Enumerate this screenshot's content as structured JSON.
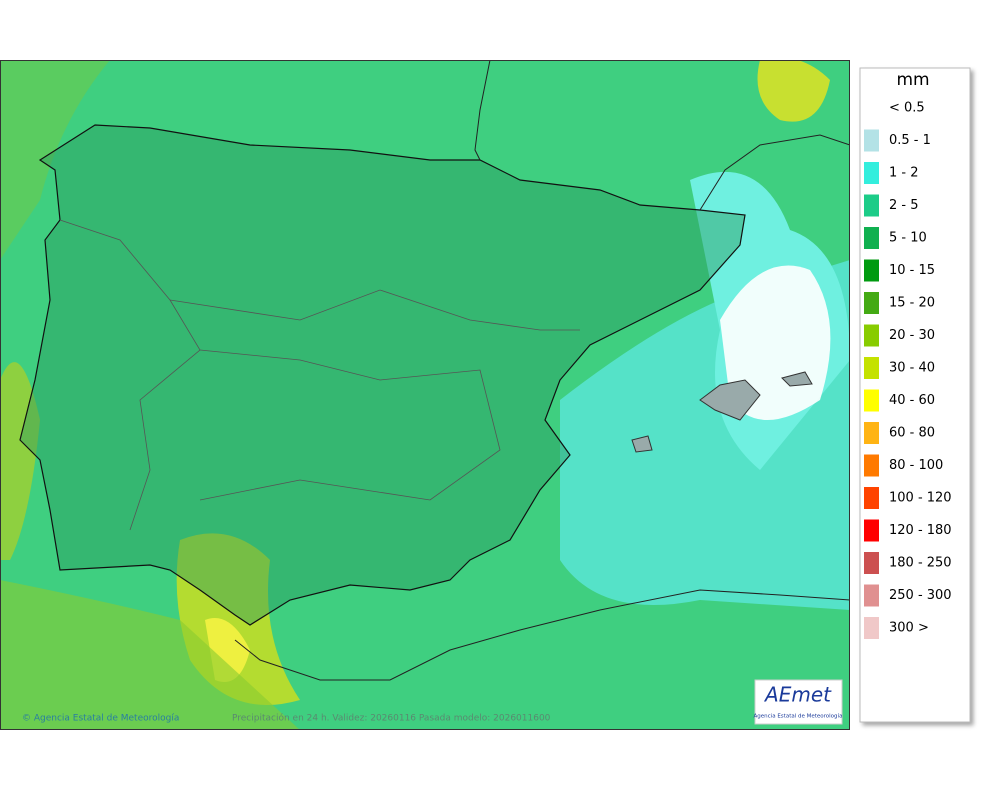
{
  "legend": {
    "title": "mm",
    "items": [
      {
        "label": "< 0.5"
      },
      {
        "label": "0.5 - 1",
        "color": "#b3e2e6"
      },
      {
        "label": "1 - 2",
        "color": "#33eedd"
      },
      {
        "label": "2 - 5",
        "color": "#1ccc88"
      },
      {
        "label": "5 - 10",
        "color": "#10b050"
      },
      {
        "label": "10 - 15",
        "color": "#009a10"
      },
      {
        "label": "15 - 20",
        "color": "#44aa14"
      },
      {
        "label": "20 - 30",
        "color": "#88cc00"
      },
      {
        "label": "30 - 40",
        "color": "#c4e200"
      },
      {
        "label": "40 - 60",
        "color": "#ffff00"
      },
      {
        "label": "60 - 80",
        "color": "#ffb414"
      },
      {
        "label": "80 - 100",
        "color": "#ff7a00"
      },
      {
        "label": "100 - 120",
        "color": "#ff4400"
      },
      {
        "label": "120 - 180",
        "color": "#ff0000"
      },
      {
        "label": "180 - 250",
        "color": "#cc5050"
      },
      {
        "label": "250 - 300",
        "color": "#e09090"
      },
      {
        "label": "300 >",
        "color": "#f0c8c8"
      }
    ]
  },
  "footer": {
    "copyright": "© Agencia Estatal de Meteorología",
    "caption": "Precipitación en 24 h. Validez: 20260116 Pasada modelo: 2026011600"
  },
  "logo": {
    "name": "AEmet",
    "subtitle": "Agencia Estatal de Meteorología"
  }
}
